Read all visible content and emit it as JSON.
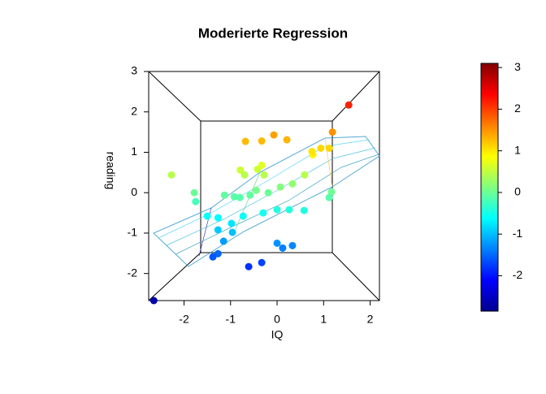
{
  "chart_data": {
    "type": "scatter",
    "title": "Moderierte Regression",
    "x_label": "IQ",
    "y_label": "reading",
    "x": [
      -2.65,
      -2.27,
      -1.78,
      -1.75,
      1.54,
      1.19,
      -0.68,
      -0.33,
      -0.07,
      0.21,
      -0.79,
      -0.7,
      -0.42,
      -0.33,
      -0.28,
      -1.13,
      -0.92,
      -0.8,
      -0.58,
      -0.45,
      -0.19,
      0.07,
      0.33,
      0.59,
      0.77,
      0.94,
      1.12,
      1.17,
      1.12,
      0.58,
      0.26,
      0.0,
      -0.3,
      -0.73,
      -1.5,
      -1.27,
      -0.98,
      -1.27,
      -0.96,
      -1.15,
      -1.27,
      -1.38,
      -0.61,
      -0.33,
      0.0,
      0.12,
      0.33,
      0.75
    ],
    "values": [
      -2.67,
      0.44,
      0.0,
      -0.22,
      2.17,
      1.5,
      1.27,
      1.28,
      1.43,
      1.31,
      0.56,
      0.44,
      0.58,
      0.68,
      0.44,
      -0.06,
      -0.1,
      -0.12,
      -0.06,
      0.06,
      0.0,
      0.14,
      0.22,
      0.44,
      0.94,
      1.1,
      1.1,
      0.02,
      -0.12,
      -0.44,
      -0.42,
      -0.42,
      -0.5,
      -0.58,
      -0.58,
      -0.62,
      -0.76,
      -0.92,
      -0.98,
      -1.2,
      -1.51,
      -1.59,
      -1.83,
      -1.73,
      -1.25,
      -1.37,
      -1.31,
      1.02
    ],
    "xlim": [
      -2.76,
      2.2
    ],
    "ylim": [
      -2.67,
      3
    ],
    "xticks": [
      -2,
      -1,
      0,
      1,
      2
    ],
    "yticks": [
      -2,
      -1,
      0,
      1,
      2,
      3
    ],
    "clim": [
      -2.85,
      3.1
    ],
    "cticks": [
      -2,
      -1,
      0,
      1,
      2,
      3
    ],
    "colormap": [
      "#00008f",
      "#0000ff",
      "#0080ff",
      "#00ffff",
      "#80ff80",
      "#ffff00",
      "#ff8000",
      "#ff0000",
      "#800000"
    ]
  }
}
